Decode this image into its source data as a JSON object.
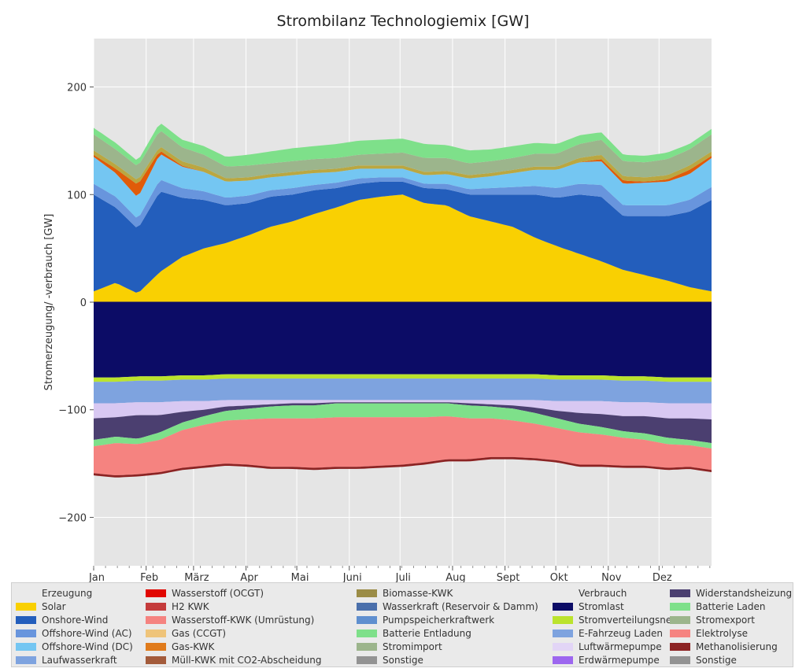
{
  "chart_data": {
    "type": "area",
    "title": "Strombilanz Technologiemix [GW]",
    "ylabel": "Stromerzeugung/ -verbrauch [GW]",
    "xlabel": "",
    "ylim": [
      -245,
      245
    ],
    "y_ticks": [
      -200,
      -100,
      0,
      100,
      200
    ],
    "y_tick_labels": [
      "−200",
      "−100",
      "0",
      "100",
      "200"
    ],
    "grid": true,
    "stacked": true,
    "x_unit": "day of year",
    "x_range": [
      0,
      365
    ],
    "month_ticks": [
      {
        "label": "Jan",
        "day": 0
      },
      {
        "label": "Feb",
        "day": 31
      },
      {
        "label": "März",
        "day": 59
      },
      {
        "label": "Apr",
        "day": 90
      },
      {
        "label": "Mai",
        "day": 120
      },
      {
        "label": "Juni",
        "day": 151
      },
      {
        "label": "Juli",
        "day": 181
      },
      {
        "label": "Aug",
        "day": 212
      },
      {
        "label": "Sept",
        "day": 243
      },
      {
        "label": "Okt",
        "day": 273
      },
      {
        "label": "Nov",
        "day": 304
      },
      {
        "label": "Dez",
        "day": 334
      }
    ],
    "positive_series": [
      {
        "name": "Solar",
        "color": "#f9d002",
        "values": [
          10,
          18,
          8,
          28,
          42,
          50,
          55,
          62,
          70,
          75,
          82,
          88,
          95,
          98,
          100,
          92,
          90,
          80,
          75,
          70,
          60,
          52,
          45,
          38,
          30,
          25,
          20,
          14,
          10
        ]
      },
      {
        "name": "Onshore-Wind",
        "color": "#235ebc",
        "values": [
          90,
          70,
          60,
          75,
          55,
          45,
          35,
          30,
          28,
          25,
          22,
          18,
          15,
          14,
          12,
          14,
          15,
          20,
          25,
          30,
          40,
          45,
          55,
          60,
          50,
          55,
          60,
          70,
          85
        ]
      },
      {
        "name": "Offshore-Wind (AC)",
        "color": "#6895dd",
        "values": [
          10,
          10,
          9,
          11,
          9,
          8,
          7,
          7,
          6,
          6,
          5,
          5,
          5,
          4,
          4,
          4,
          5,
          5,
          6,
          7,
          8,
          9,
          10,
          11,
          10,
          10,
          10,
          11,
          12
        ]
      },
      {
        "name": "Offshore-Wind (DC)",
        "color": "#74c6f2",
        "values": [
          25,
          22,
          20,
          24,
          20,
          18,
          15,
          14,
          12,
          12,
          11,
          10,
          9,
          8,
          8,
          8,
          9,
          10,
          11,
          13,
          15,
          17,
          20,
          22,
          20,
          21,
          22,
          24,
          27
        ]
      },
      {
        "name": "Wasserstoff (OCGT)",
        "color": "#e05b09",
        "values": [
          2,
          4,
          12,
          3,
          1,
          0,
          0,
          0,
          0,
          0,
          0,
          0,
          0,
          0,
          0,
          0,
          0,
          0,
          0,
          0,
          0,
          0,
          0,
          2,
          3,
          1,
          2,
          4,
          2
        ]
      },
      {
        "name": "Biomasse-KWK",
        "color": "#baa741",
        "values": [
          4,
          4,
          4,
          4,
          4,
          4,
          3,
          3,
          3,
          3,
          3,
          3,
          3,
          3,
          3,
          3,
          3,
          3,
          3,
          3,
          3,
          3,
          4,
          4,
          4,
          4,
          4,
          4,
          4
        ]
      },
      {
        "name": "Stromimport",
        "color": "#9cb58c",
        "values": [
          15,
          14,
          13,
          15,
          13,
          12,
          11,
          11,
          10,
          10,
          10,
          10,
          10,
          11,
          12,
          13,
          12,
          11,
          11,
          11,
          12,
          12,
          13,
          14,
          14,
          14,
          15,
          15,
          16
        ]
      },
      {
        "name": "Batterie Entladung",
        "color": "#7ee08a",
        "values": [
          6,
          6,
          5,
          7,
          7,
          8,
          9,
          10,
          11,
          12,
          12,
          13,
          13,
          13,
          13,
          13,
          12,
          12,
          11,
          11,
          10,
          9,
          8,
          7,
          6,
          6,
          6,
          5,
          5
        ]
      }
    ],
    "negative_series": [
      {
        "name": "Stromlast",
        "color": "#0c0c66",
        "values": [
          -70,
          -70,
          -69,
          -69,
          -68,
          -68,
          -67,
          -67,
          -67,
          -67,
          -67,
          -67,
          -67,
          -67,
          -67,
          -67,
          -67,
          -67,
          -67,
          -67,
          -67,
          -68,
          -68,
          -68,
          -69,
          -69,
          -70,
          -70,
          -70
        ]
      },
      {
        "name": "Stromverteilungsnetz",
        "color": "#bbe32d",
        "values": [
          -4,
          -4,
          -4,
          -4,
          -4,
          -4,
          -4,
          -4,
          -4,
          -4,
          -4,
          -4,
          -4,
          -4,
          -4,
          -4,
          -4,
          -4,
          -4,
          -4,
          -4,
          -4,
          -4,
          -4,
          -4,
          -4,
          -4,
          -4,
          -4
        ]
      },
      {
        "name": "E-Fahrzeug Laden",
        "color": "#7ea3df",
        "values": [
          -20,
          -20,
          -20,
          -20,
          -20,
          -20,
          -20,
          -20,
          -20,
          -20,
          -20,
          -20,
          -20,
          -20,
          -20,
          -20,
          -20,
          -20,
          -20,
          -20,
          -20,
          -20,
          -20,
          -20,
          -20,
          -20,
          -20,
          -20,
          -20
        ]
      },
      {
        "name": "Luftwärmepumpe",
        "color": "#d8c8f2",
        "values": [
          -14,
          -13,
          -12,
          -12,
          -10,
          -8,
          -6,
          -5,
          -4,
          -3,
          -3,
          -2,
          -2,
          -2,
          -2,
          -2,
          -2,
          -3,
          -4,
          -5,
          -7,
          -9,
          -11,
          -12,
          -13,
          -13,
          -14,
          -14,
          -15
        ]
      },
      {
        "name": "Widerstandsheizung",
        "color": "#4b3f70",
        "values": [
          -20,
          -18,
          -22,
          -16,
          -10,
          -6,
          -4,
          -3,
          -2,
          -2,
          -2,
          -1,
          -1,
          -1,
          -1,
          -1,
          -1,
          -2,
          -2,
          -3,
          -5,
          -7,
          -10,
          -12,
          -14,
          -16,
          -18,
          -20,
          -22
        ]
      },
      {
        "name": "Batterie Laden",
        "color": "#7ee08a",
        "values": [
          -6,
          -6,
          -5,
          -7,
          -7,
          -8,
          -9,
          -10,
          -11,
          -12,
          -12,
          -13,
          -13,
          -13,
          -13,
          -13,
          -12,
          -12,
          -11,
          -11,
          -10,
          -9,
          -8,
          -7,
          -6,
          -6,
          -6,
          -5,
          -5
        ]
      },
      {
        "name": "Elektrolyse",
        "color": "#f58380",
        "values": [
          -25,
          -30,
          -28,
          -30,
          -35,
          -38,
          -40,
          -42,
          -45,
          -45,
          -46,
          -46,
          -46,
          -45,
          -44,
          -42,
          -40,
          -38,
          -36,
          -34,
          -32,
          -30,
          -30,
          -28,
          -26,
          -24,
          -22,
          -20,
          -20
        ]
      },
      {
        "name": "Methanolisierung",
        "color": "#8c2323",
        "values": [
          -2,
          -2,
          -2,
          -2,
          -2,
          -2,
          -2,
          -2,
          -2,
          -2,
          -2,
          -2,
          -2,
          -2,
          -2,
          -2,
          -2,
          -2,
          -2,
          -2,
          -2,
          -2,
          -2,
          -2,
          -2,
          -2,
          -2,
          -2,
          -2
        ]
      }
    ],
    "legend": {
      "placement": "bottom",
      "columns": [
        [
          {
            "label": "Erzeugung",
            "color": null
          },
          {
            "label": "Solar",
            "color": "#f9d002"
          },
          {
            "label": "Onshore-Wind",
            "color": "#235ebc"
          },
          {
            "label": "Offshore-Wind (AC)",
            "color": "#6895dd"
          },
          {
            "label": "Offshore-Wind (DC)",
            "color": "#74c6f2"
          },
          {
            "label": "Laufwasserkraft",
            "color": "#7ea3df"
          }
        ],
        [
          {
            "label": "Wasserstoff (OCGT)",
            "color": "#e10600"
          },
          {
            "label": "H2 KWK",
            "color": "#c43b3b"
          },
          {
            "label": "Wasserstoff-KWK (Umrüstung)",
            "color": "#f58380"
          },
          {
            "label": "Gas (CCGT)",
            "color": "#efc47a"
          },
          {
            "label": "Gas-KWK",
            "color": "#e07b1c"
          },
          {
            "label": "Müll-KWK mit CO2-Abscheidung",
            "color": "#a35b3b"
          }
        ],
        [
          {
            "label": "Biomasse-KWK",
            "color": "#9b8c46"
          },
          {
            "label": "Wasserkraft (Reservoir & Damm)",
            "color": "#4a6fab"
          },
          {
            "label": "Pumpspeicherkraftwerk",
            "color": "#5f8fcf"
          },
          {
            "label": "Batterie Entladung",
            "color": "#7ee08a"
          },
          {
            "label": "Stromimport",
            "color": "#9cb58c"
          },
          {
            "label": "Sonstige",
            "color": "#939393"
          }
        ],
        [
          {
            "label": "Verbrauch",
            "color": null
          },
          {
            "label": "Stromlast",
            "color": "#0c0c66"
          },
          {
            "label": "Stromverteilungsnetz",
            "color": "#bbe32d"
          },
          {
            "label": "E-Fahrzeug Laden",
            "color": "#7ea3df"
          },
          {
            "label": "Luftwärmepumpe",
            "color": "#e2d5f6"
          },
          {
            "label": "Erdwärmepumpe",
            "color": "#9d67ef"
          }
        ],
        [
          {
            "label": "Widerstandsheizung",
            "color": "#4b3f70"
          },
          {
            "label": "Batterie Laden",
            "color": "#7ee08a"
          },
          {
            "label": "Stromexport",
            "color": "#9cb58c"
          },
          {
            "label": "Elektrolyse",
            "color": "#f58380"
          },
          {
            "label": "Methanolisierung",
            "color": "#8c2323"
          },
          {
            "label": "Sonstige",
            "color": "#939393"
          }
        ]
      ]
    }
  }
}
